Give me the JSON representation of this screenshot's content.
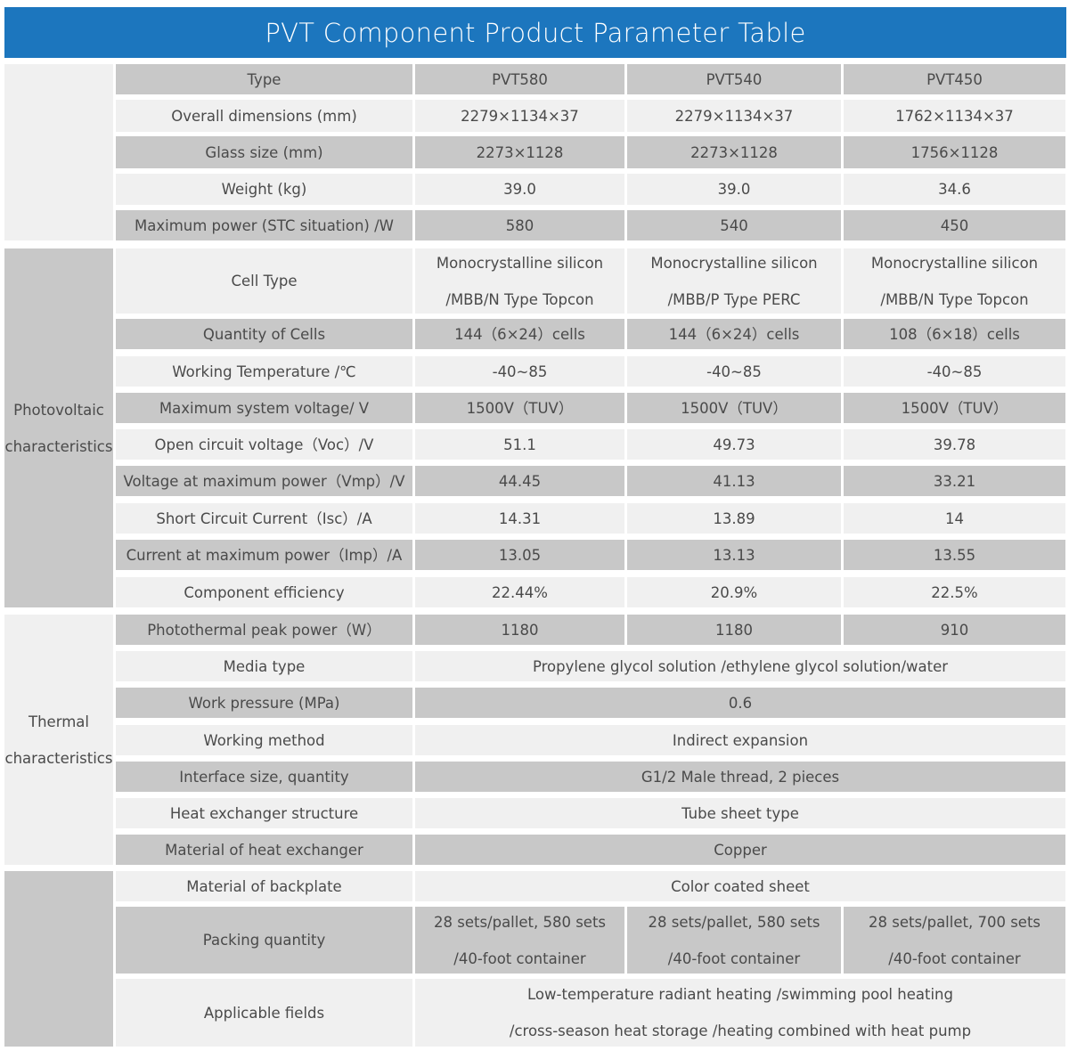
{
  "title": "PVT Component Product Parameter Table",
  "colors": {
    "header": "#1c76be",
    "row_dark": "#c8c8c8",
    "row_light": "#f0f0f0"
  },
  "groups": [
    {
      "label": []
    },
    {
      "label": [
        "Photovoltaic",
        "characteristics"
      ]
    },
    {
      "label": [
        "Thermal",
        "characteristics"
      ]
    },
    {
      "label": []
    }
  ],
  "rows": [
    {
      "label": [
        "Type"
      ],
      "values": [
        [
          "PVT580"
        ],
        [
          "PVT540"
        ],
        [
          "PVT450"
        ]
      ]
    },
    {
      "label": [
        "Overall dimensions (mm)"
      ],
      "values": [
        [
          "2279×1134×37"
        ],
        [
          "2279×1134×37"
        ],
        [
          "1762×1134×37"
        ]
      ]
    },
    {
      "label": [
        "Glass size (mm)"
      ],
      "values": [
        [
          "2273×1128"
        ],
        [
          "2273×1128"
        ],
        [
          "1756×1128"
        ]
      ]
    },
    {
      "label": [
        "Weight (kg)"
      ],
      "values": [
        [
          "39.0"
        ],
        [
          "39.0"
        ],
        [
          "34.6"
        ]
      ]
    },
    {
      "label": [
        "Maximum power (STC situation) /W"
      ],
      "values": [
        [
          "580"
        ],
        [
          "540"
        ],
        [
          "450"
        ]
      ]
    },
    {
      "label": [
        "Cell Type"
      ],
      "values": [
        [
          "Monocrystalline silicon",
          "/MBB/N Type Topcon"
        ],
        [
          "Monocrystalline silicon",
          "/MBB/P Type PERC"
        ],
        [
          "Monocrystalline silicon",
          "/MBB/N Type Topcon"
        ]
      ]
    },
    {
      "label": [
        "Quantity of Cells"
      ],
      "values": [
        [
          "144（6×24）cells"
        ],
        [
          "144（6×24）cells"
        ],
        [
          "108（6×18）cells"
        ]
      ]
    },
    {
      "label": [
        "Working Temperature /℃"
      ],
      "values": [
        [
          "-40~85"
        ],
        [
          "-40~85"
        ],
        [
          "-40~85"
        ]
      ]
    },
    {
      "label": [
        "Maximum system voltage/ V"
      ],
      "values": [
        [
          "1500V（TUV）"
        ],
        [
          "1500V（TUV）"
        ],
        [
          "1500V（TUV）"
        ]
      ]
    },
    {
      "label": [
        "Open circuit voltage（Voc）/V"
      ],
      "values": [
        [
          "51.1"
        ],
        [
          "49.73"
        ],
        [
          "39.78"
        ]
      ]
    },
    {
      "label": [
        "Voltage at maximum power（Vmp）/V"
      ],
      "values": [
        [
          "44.45"
        ],
        [
          "41.13"
        ],
        [
          "33.21"
        ]
      ]
    },
    {
      "label": [
        "Short Circuit Current（Isc）/A"
      ],
      "values": [
        [
          "14.31"
        ],
        [
          "13.89"
        ],
        [
          "14"
        ]
      ]
    },
    {
      "label": [
        "Current at maximum power（Imp）/A"
      ],
      "values": [
        [
          "13.05"
        ],
        [
          "13.13"
        ],
        [
          "13.55"
        ]
      ]
    },
    {
      "label": [
        "Component efficiency"
      ],
      "values": [
        [
          "22.44%"
        ],
        [
          "20.9%"
        ],
        [
          "22.5%"
        ]
      ]
    },
    {
      "label": [
        "Photothermal peak power（W）"
      ],
      "values": [
        [
          "1180"
        ],
        [
          "1180"
        ],
        [
          "910"
        ]
      ]
    },
    {
      "label": [
        "Media type"
      ],
      "values": [
        [
          "Propylene glycol solution /ethylene glycol solution/water"
        ]
      ]
    },
    {
      "label": [
        "Work pressure (MPa)"
      ],
      "values": [
        [
          "0.6"
        ]
      ]
    },
    {
      "label": [
        "Working method"
      ],
      "values": [
        [
          "Indirect expansion"
        ]
      ]
    },
    {
      "label": [
        "Interface size, quantity"
      ],
      "values": [
        [
          "G1/2 Male thread, 2 pieces"
        ]
      ]
    },
    {
      "label": [
        "Heat exchanger structure"
      ],
      "values": [
        [
          "Tube sheet type"
        ]
      ]
    },
    {
      "label": [
        "Material of heat exchanger"
      ],
      "values": [
        [
          "Copper"
        ]
      ]
    },
    {
      "label": [
        "Material of backplate"
      ],
      "values": [
        [
          "Color coated sheet"
        ]
      ]
    },
    {
      "label": [
        "Packing quantity"
      ],
      "values": [
        [
          "28 sets/pallet, 580 sets",
          "/40-foot container"
        ],
        [
          "28 sets/pallet, 580 sets",
          "/40-foot container"
        ],
        [
          "28 sets/pallet, 700 sets",
          "/40-foot container"
        ]
      ]
    },
    {
      "label": [
        "Applicable fields"
      ],
      "values": [
        [
          "Low-temperature radiant heating /swimming pool heating",
          "/cross-season heat storage /heating combined with heat pump"
        ]
      ]
    }
  ]
}
